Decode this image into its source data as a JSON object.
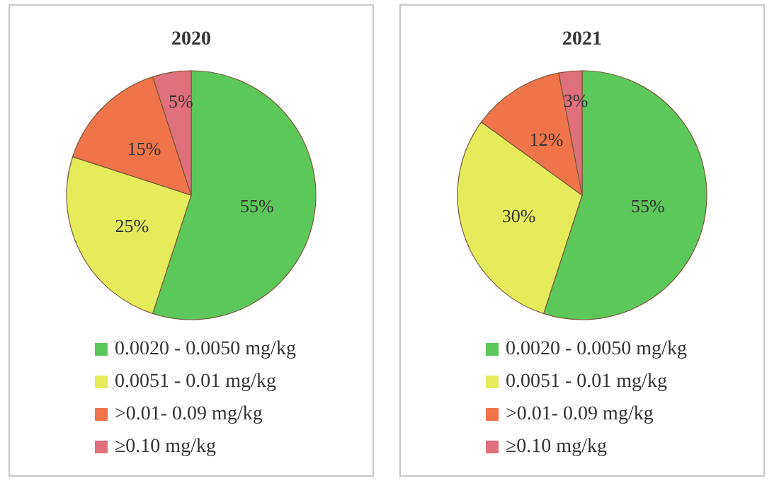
{
  "chart_data": [
    {
      "type": "pie",
      "title": "2020",
      "categories": [
        "0.0020 - 0.0050 mg/kg",
        "0.0051 - 0.01 mg/kg",
        ">0.01- 0.09 mg/kg",
        "≥0.10 mg/kg"
      ],
      "values": [
        55,
        25,
        15,
        5
      ],
      "value_labels": [
        "55%",
        "25%",
        "15%",
        "5%"
      ],
      "colors": [
        "#5cc85a",
        "#e4ec5c",
        "#f0744a",
        "#e0707c"
      ],
      "legend": "bottom"
    },
    {
      "type": "pie",
      "title": "2021",
      "categories": [
        "0.0020 - 0.0050 mg/kg",
        "0.0051 - 0.01 mg/kg",
        ">0.01- 0.09 mg/kg",
        "≥0.10 mg/kg"
      ],
      "values": [
        55,
        30,
        12,
        3
      ],
      "value_labels": [
        "55%",
        "30%",
        "12%",
        "3%"
      ],
      "colors": [
        "#5cc85a",
        "#e4ec5c",
        "#f0744a",
        "#e0707c"
      ],
      "legend": "bottom"
    }
  ]
}
